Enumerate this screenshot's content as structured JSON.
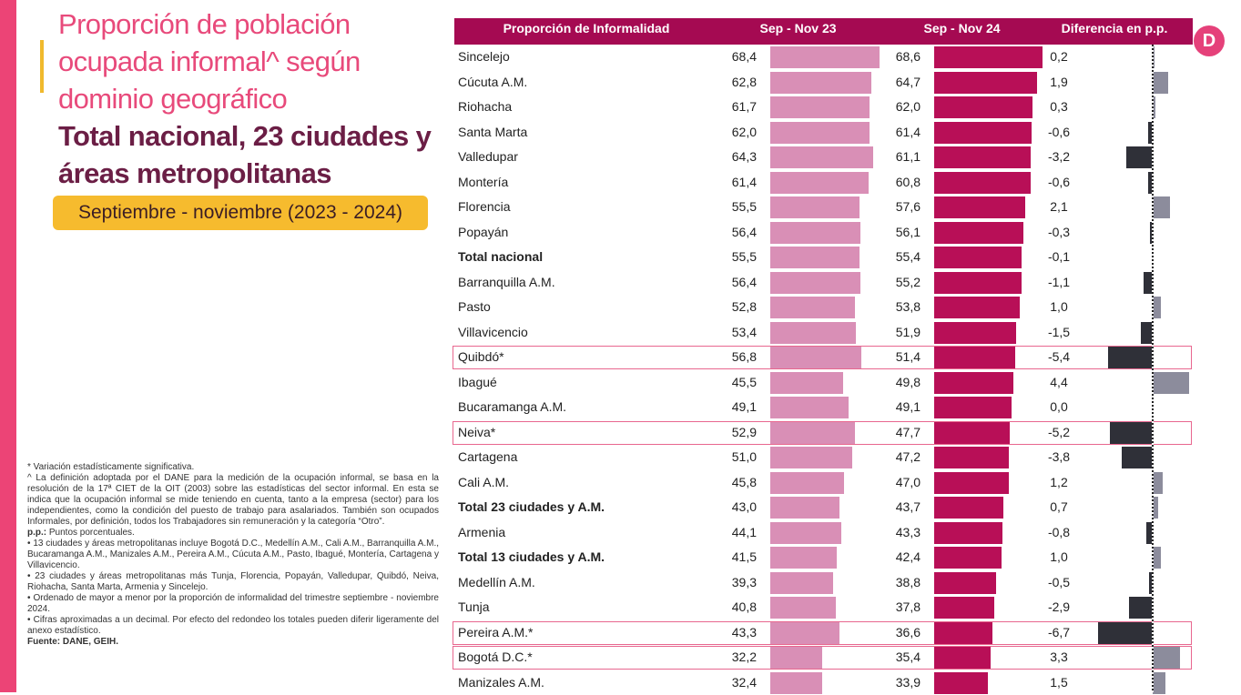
{
  "title": "Proporción de población ocupada informal^ según dominio geográfico",
  "subtitle": "Total nacional, 23 ciudades y áreas metropolitanas",
  "period": "Septiembre - noviembre (2023 - 2024)",
  "logo_letter": "D",
  "colors": {
    "stripe": "#ec4476",
    "header": "#a50a52",
    "bar23": "#d98fb6",
    "bar24": "#b80f57",
    "diff_pos": "#8c8c9c",
    "diff_neg": "#2f3038"
  },
  "notes": {
    "significance": "* Variación estadísticamente significativa.",
    "definition": "^ La definición adoptada por el DANE para la medición de la ocupación informal, se basa en la resolución de la 17ª CIET de la OIT (2003) sobre las estadísticas del sector informal. En esta se indica que la ocupación informal se mide teniendo en cuenta, tanto a la empresa (sector) para los independientes, como la condición del puesto de trabajo para asalariados. También son ocupados Informales, por definición, todos los Trabajadores sin remuneración y la categoría “Otro”.",
    "pp_label": "p.p.:",
    "pp_text": " Puntos porcentuales.",
    "cities13": "• 13 ciudades y áreas metropolitanas incluye Bogotá D.C., Medellín A.M., Cali A.M., Barranquilla A.M., Bucaramanga A.M., Manizales A.M., Pereira A.M., Cúcuta A.M., Pasto, Ibagué, Montería, Cartagena y Villavicencio.",
    "cities23": "• 23 ciudades y áreas metropolitanas más Tunja, Florencia, Popayán, Valledupar, Quibdó, Neiva, Riohacha, Santa Marta, Armenia y Sincelejo.",
    "order": "• Ordenado de mayor a menor por la proporción de informalidad del trimestre septiembre - noviembre 2024.",
    "rounding": "• Cifras aproximadas a un decimal. Por efecto del redondeo los totales pueden diferir ligeramente del anexo estadístico.",
    "source": "Fuente: DANE, GEIH."
  },
  "chart_data": {
    "type": "table",
    "title": "Proporción de población ocupada informal según dominio geográfico",
    "columns": [
      "Proporción de Informalidad",
      "Sep - Nov 23",
      "Sep - Nov 24",
      "Diferencia en p.p."
    ],
    "unit": "%",
    "rows": [
      {
        "name": "Sincelejo",
        "v23": "68,4",
        "v24": "68,6",
        "diff": "0,2",
        "bold": false,
        "highlight": false
      },
      {
        "name": "Cúcuta A.M.",
        "v23": "62,8",
        "v24": "64,7",
        "diff": "1,9",
        "bold": false,
        "highlight": false
      },
      {
        "name": "Riohacha",
        "v23": "61,7",
        "v24": "62,0",
        "diff": "0,3",
        "bold": false,
        "highlight": false
      },
      {
        "name": "Santa Marta",
        "v23": "62,0",
        "v24": "61,4",
        "diff": "-0,6",
        "bold": false,
        "highlight": false
      },
      {
        "name": "Valledupar",
        "v23": "64,3",
        "v24": "61,1",
        "diff": "-3,2",
        "bold": false,
        "highlight": false
      },
      {
        "name": "Montería",
        "v23": "61,4",
        "v24": "60,8",
        "diff": "-0,6",
        "bold": false,
        "highlight": false
      },
      {
        "name": "Florencia",
        "v23": "55,5",
        "v24": "57,6",
        "diff": "2,1",
        "bold": false,
        "highlight": false
      },
      {
        "name": "Popayán",
        "v23": "56,4",
        "v24": "56,1",
        "diff": "-0,3",
        "bold": false,
        "highlight": false
      },
      {
        "name": "Total nacional",
        "v23": "55,5",
        "v24": "55,4",
        "diff": "-0,1",
        "bold": true,
        "highlight": false
      },
      {
        "name": "Barranquilla A.M.",
        "v23": "56,4",
        "v24": "55,2",
        "diff": "-1,1",
        "bold": false,
        "highlight": false
      },
      {
        "name": "Pasto",
        "v23": "52,8",
        "v24": "53,8",
        "diff": "1,0",
        "bold": false,
        "highlight": false
      },
      {
        "name": "Villavicencio",
        "v23": "53,4",
        "v24": "51,9",
        "diff": "-1,5",
        "bold": false,
        "highlight": false
      },
      {
        "name": "Quibdó*",
        "v23": "56,8",
        "v24": "51,4",
        "diff": "-5,4",
        "bold": false,
        "highlight": true
      },
      {
        "name": "Ibagué",
        "v23": "45,5",
        "v24": "49,8",
        "diff": "4,4",
        "bold": false,
        "highlight": false
      },
      {
        "name": "Bucaramanga A.M.",
        "v23": "49,1",
        "v24": "49,1",
        "diff": "0,0",
        "bold": false,
        "highlight": false
      },
      {
        "name": "Neiva*",
        "v23": "52,9",
        "v24": "47,7",
        "diff": "-5,2",
        "bold": false,
        "highlight": true
      },
      {
        "name": "Cartagena",
        "v23": "51,0",
        "v24": "47,2",
        "diff": "-3,8",
        "bold": false,
        "highlight": false
      },
      {
        "name": "Cali A.M.",
        "v23": "45,8",
        "v24": "47,0",
        "diff": "1,2",
        "bold": false,
        "highlight": false
      },
      {
        "name": "Total 23 ciudades y A.M.",
        "v23": "43,0",
        "v24": "43,7",
        "diff": "0,7",
        "bold": true,
        "highlight": false
      },
      {
        "name": "Armenia",
        "v23": "44,1",
        "v24": "43,3",
        "diff": "-0,8",
        "bold": false,
        "highlight": false
      },
      {
        "name": "Total 13 ciudades y A.M.",
        "v23": "41,5",
        "v24": "42,4",
        "diff": "1,0",
        "bold": true,
        "highlight": false
      },
      {
        "name": "Medellín A.M.",
        "v23": "39,3",
        "v24": "38,8",
        "diff": "-0,5",
        "bold": false,
        "highlight": false
      },
      {
        "name": "Tunja",
        "v23": "40,8",
        "v24": "37,8",
        "diff": "-2,9",
        "bold": false,
        "highlight": false
      },
      {
        "name": "Pereira A.M.*",
        "v23": "43,3",
        "v24": "36,6",
        "diff": "-6,7",
        "bold": false,
        "highlight": true
      },
      {
        "name": "Bogotá D.C.*",
        "v23": "32,2",
        "v24": "35,4",
        "diff": "3,3",
        "bold": false,
        "highlight": true
      },
      {
        "name": "Manizales A.M.",
        "v23": "32,4",
        "v24": "33,9",
        "diff": "1,5",
        "bold": false,
        "highlight": false
      }
    ]
  }
}
